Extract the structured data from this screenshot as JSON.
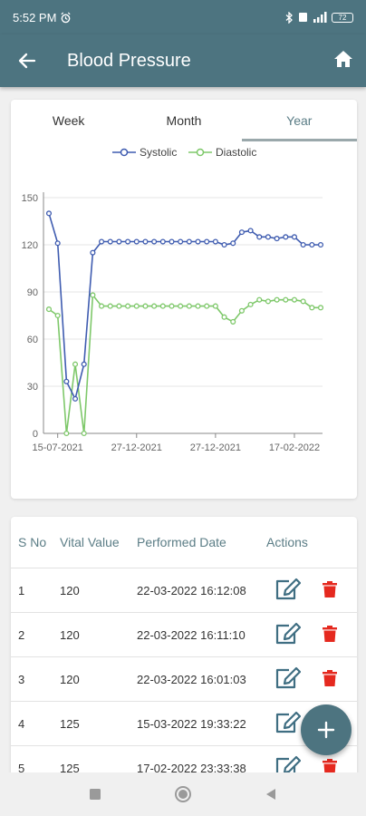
{
  "status": {
    "time": "5:52 PM",
    "battery": "72"
  },
  "header": {
    "title": "Blood Pressure"
  },
  "tabs": [
    {
      "label": "Week"
    },
    {
      "label": "Month"
    },
    {
      "label": "Year",
      "active": true
    }
  ],
  "chart_data": {
    "type": "line",
    "legend": [
      "Systolic",
      "Diastolic"
    ],
    "legend_position": "top-center",
    "ylim": [
      0,
      150
    ],
    "yticks": [
      0,
      30,
      60,
      90,
      120,
      150
    ],
    "xticks": [
      "15-07-2021",
      "27-12-2021",
      "27-12-2021",
      "17-02-2022"
    ],
    "grid": true,
    "series": [
      {
        "name": "Systolic",
        "color": "#3f5cb0",
        "values": [
          140,
          121,
          33,
          22,
          44,
          115,
          122,
          122,
          122,
          122,
          122,
          122,
          122,
          122,
          122,
          122,
          122,
          122,
          122,
          122,
          120,
          121,
          128,
          129,
          125,
          125,
          124,
          125,
          125,
          120,
          120,
          120
        ]
      },
      {
        "name": "Diastolic",
        "color": "#7ec86a",
        "values": [
          79,
          75,
          0,
          44,
          0,
          88,
          81,
          81,
          81,
          81,
          81,
          81,
          81,
          81,
          81,
          81,
          81,
          81,
          81,
          81,
          74,
          71,
          78,
          82,
          85,
          84,
          85,
          85,
          85,
          84,
          80,
          80
        ]
      }
    ]
  },
  "table": {
    "headers": [
      "S No",
      "Vital Value",
      "Performed Date",
      "Actions"
    ],
    "rows": [
      {
        "sno": "1",
        "value": "120",
        "date": "22-03-2022 16:12:08"
      },
      {
        "sno": "2",
        "value": "120",
        "date": "22-03-2022 16:11:10"
      },
      {
        "sno": "3",
        "value": "120",
        "date": "22-03-2022 16:01:03"
      },
      {
        "sno": "4",
        "value": "125",
        "date": "15-03-2022 19:33:22"
      },
      {
        "sno": "5",
        "value": "125",
        "date": "17-02-2022 23:33:38"
      }
    ]
  },
  "fab": {
    "label": "+"
  },
  "icons": {
    "back": "arrow-left-icon",
    "home": "home-icon",
    "edit": "edit-icon",
    "delete": "delete-icon"
  }
}
